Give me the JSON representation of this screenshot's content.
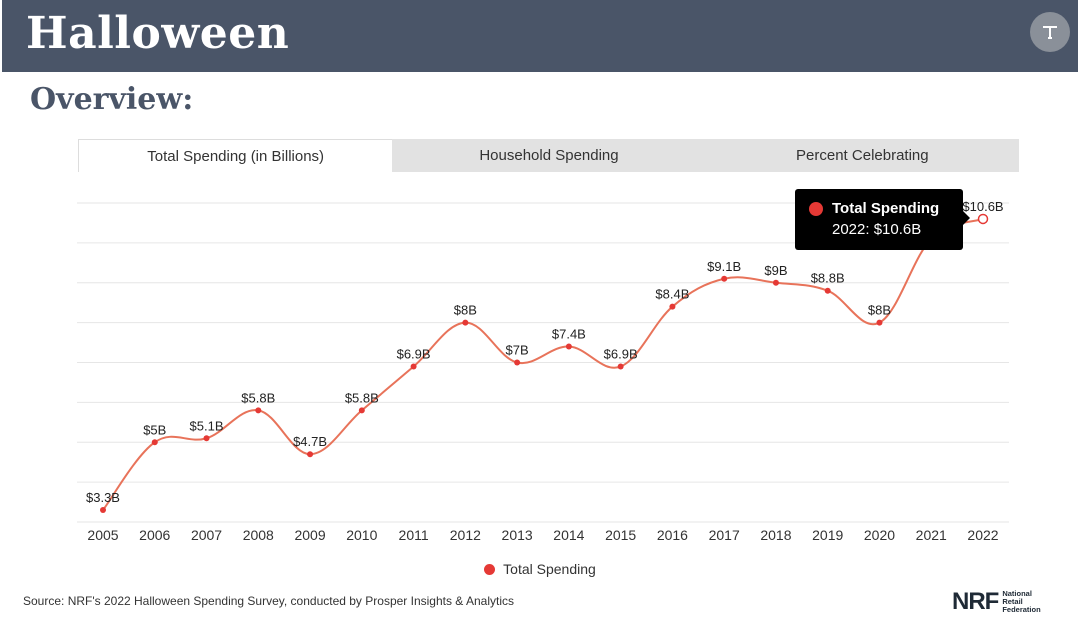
{
  "header": {
    "title": "Halloween",
    "corner_icon": "cursor-icon"
  },
  "subtitle": "Overview:",
  "tabs": [
    {
      "label": "Total Spending (in Billions)",
      "active": true
    },
    {
      "label": "Household Spending",
      "active": false
    },
    {
      "label": "Percent Celebrating",
      "active": false
    }
  ],
  "tooltip": {
    "title": "Total Spending",
    "value": "2022: $10.6B"
  },
  "legend": {
    "label": "Total Spending"
  },
  "source": "Source: NRF's 2022 Halloween Spending Survey, conducted by Prosper Insights & Analytics",
  "logo": {
    "mark": "NRF",
    "line1": "National",
    "line2": "Retail",
    "line3": "Federation"
  },
  "colors": {
    "header_bg": "#4a5568",
    "series_line": "#e8735a",
    "series_marker": "#e53935"
  },
  "chart_data": {
    "type": "line",
    "categories": [
      "2005",
      "2006",
      "2007",
      "2008",
      "2009",
      "2010",
      "2011",
      "2012",
      "2013",
      "2014",
      "2015",
      "2016",
      "2017",
      "2018",
      "2019",
      "2020",
      "2021",
      "2022"
    ],
    "series": [
      {
        "name": "Total Spending",
        "values": [
          3.3,
          5,
          5.1,
          5.8,
          4.7,
          5.8,
          6.9,
          8,
          7,
          7.4,
          6.9,
          8.4,
          9.1,
          9,
          8.8,
          8,
          10.1,
          10.6
        ],
        "labels": [
          "$3.3B",
          "$5B",
          "$5.1B",
          "$5.8B",
          "$4.7B",
          "$5.8B",
          "$6.9B",
          "$8B",
          "$7B",
          "$7.4B",
          "$6.9B",
          "$8.4B",
          "$9.1B",
          "$9B",
          "$8.8B",
          "$8B",
          "",
          "$10.6B"
        ]
      }
    ],
    "ylim": [
      3,
      11
    ],
    "grid": true,
    "legend_position": "bottom",
    "highlighted_index": 17
  }
}
